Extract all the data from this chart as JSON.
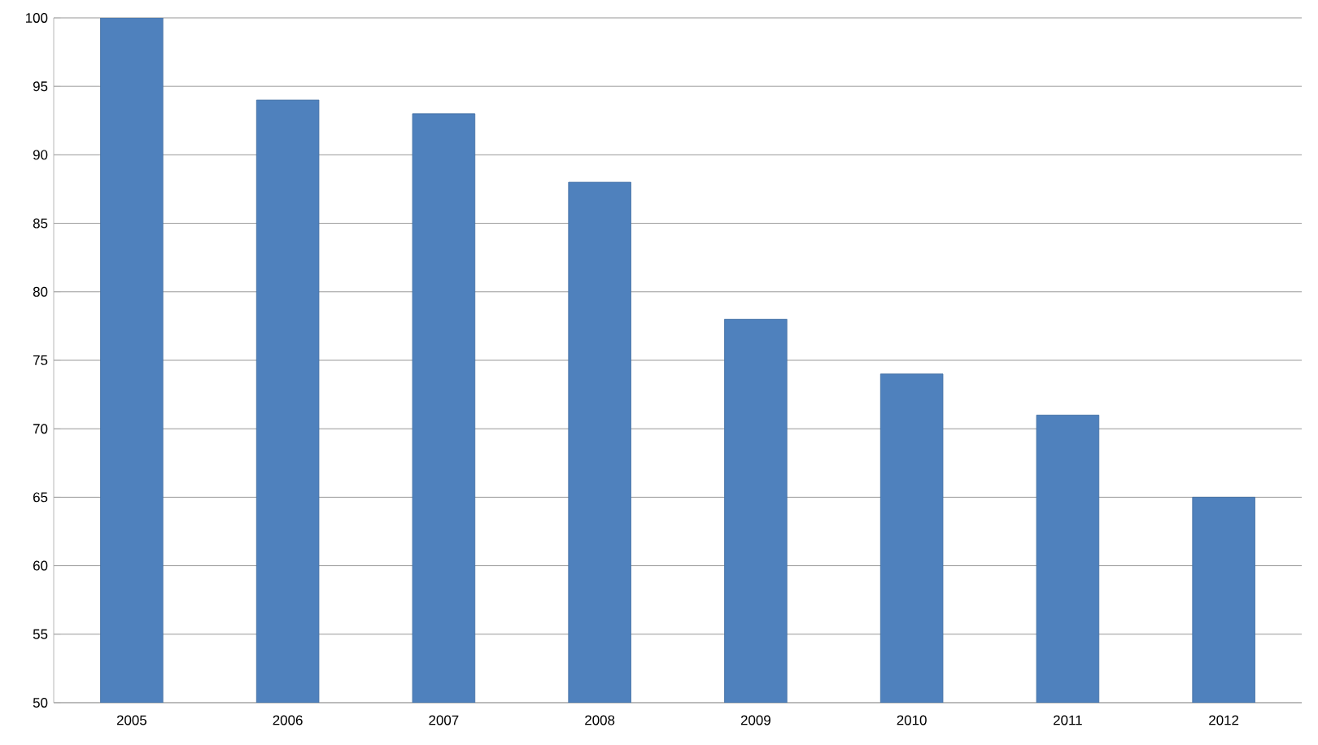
{
  "chart_data": {
    "type": "bar",
    "categories": [
      "2005",
      "2006",
      "2007",
      "2008",
      "2009",
      "2010",
      "2011",
      "2012"
    ],
    "values": [
      100,
      94,
      93,
      88,
      78,
      74,
      71,
      65
    ],
    "color": "#4f81bd",
    "ylim": [
      50,
      100
    ],
    "yticks": [
      50,
      55,
      60,
      65,
      70,
      75,
      80,
      85,
      90,
      95,
      100
    ],
    "grid": "y"
  }
}
